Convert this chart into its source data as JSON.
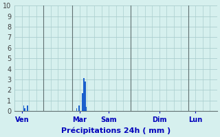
{
  "xlabel": "Précipitations 24h ( mm )",
  "background_color": "#d6f0ee",
  "plot_background_color": "#d6f0ee",
  "bar_color": "#1a5fcc",
  "grid_color": "#aacece",
  "ylim": [
    0,
    10
  ],
  "yticks": [
    0,
    1,
    2,
    3,
    4,
    5,
    6,
    7,
    8,
    9,
    10
  ],
  "day_labels": [
    "Ven",
    "Mar",
    "Sam",
    "Dim",
    "Lun"
  ],
  "day_x_positions": [
    6,
    54,
    78,
    120,
    150
  ],
  "vline_x_positions": [
    24,
    48,
    96,
    144
  ],
  "total_xlim": [
    0,
    168
  ],
  "bar_data": [
    [
      7,
      0.55
    ],
    [
      8,
      0.3
    ],
    [
      10,
      0.5
    ],
    [
      51,
      0.3
    ],
    [
      53,
      0.5
    ],
    [
      56,
      1.7
    ],
    [
      57,
      3.1
    ],
    [
      58,
      2.8
    ],
    [
      59,
      0.4
    ]
  ],
  "bar_width": 1.0,
  "vline_color": "#607070",
  "xlabel_color": "#0000bb",
  "xtick_color": "#0000bb",
  "ytick_color": "#404040",
  "xlabel_fontsize": 8,
  "xtick_fontsize": 7,
  "ytick_fontsize": 7
}
